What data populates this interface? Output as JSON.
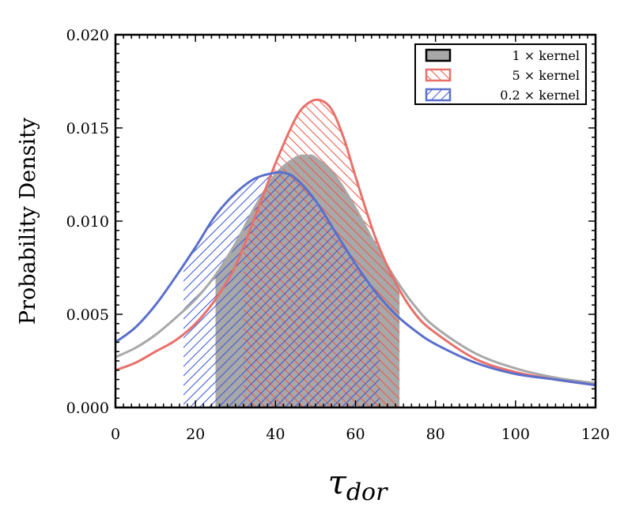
{
  "chart_data": {
    "type": "area",
    "xlabel": "τ",
    "xlabel_sub": "dor",
    "ylabel": "Probability Density",
    "xlim": [
      0,
      120
    ],
    "ylim": [
      0,
      0.02
    ],
    "xticks": [
      0,
      20,
      40,
      60,
      80,
      100,
      120
    ],
    "xtick_labels": [
      "0",
      "20",
      "40",
      "60",
      "80",
      "100",
      "120"
    ],
    "yticks": [
      0,
      0.005,
      0.01,
      0.015,
      0.02
    ],
    "ytick_labels": [
      "0.000",
      "0.005",
      "0.010",
      "0.015",
      "0.020"
    ],
    "grid": false,
    "legend_position": "top-right",
    "series": [
      {
        "name": "1 × kernel",
        "color": "#a8a8a8",
        "fill": "solid-gray",
        "shaded_interval": [
          25,
          71
        ],
        "x": [
          0,
          5,
          10,
          15,
          20,
          25,
          30,
          35,
          40,
          45,
          48,
          50,
          55,
          60,
          65,
          70,
          75,
          80,
          90,
          100,
          110,
          120
        ],
        "y": [
          0.0027,
          0.0032,
          0.0039,
          0.0048,
          0.0058,
          0.0071,
          0.0088,
          0.0108,
          0.0125,
          0.0134,
          0.0135,
          0.0134,
          0.0124,
          0.0107,
          0.0087,
          0.0069,
          0.0054,
          0.0043,
          0.0029,
          0.0021,
          0.0016,
          0.0013
        ]
      },
      {
        "name": "5 × kernel",
        "color": "#e8706a",
        "fill": "hatch-backslash",
        "shaded_interval": [
          32,
          71
        ],
        "x": [
          0,
          5,
          10,
          15,
          20,
          25,
          30,
          35,
          40,
          45,
          48,
          51,
          54,
          57,
          60,
          65,
          70,
          75,
          80,
          90,
          100,
          110,
          120
        ],
        "y": [
          0.002,
          0.0024,
          0.003,
          0.0036,
          0.0045,
          0.0058,
          0.0076,
          0.0103,
          0.0131,
          0.0155,
          0.0163,
          0.0165,
          0.016,
          0.0145,
          0.0124,
          0.0091,
          0.0067,
          0.005,
          0.004,
          0.0026,
          0.0019,
          0.0015,
          0.0012
        ]
      },
      {
        "name": "0.2 × kernel",
        "color": "#5a6fcc",
        "fill": "hatch-slash",
        "shaded_interval": [
          17,
          66
        ],
        "x": [
          0,
          5,
          10,
          15,
          20,
          25,
          30,
          35,
          40,
          42,
          45,
          50,
          55,
          60,
          65,
          70,
          75,
          80,
          90,
          100,
          110,
          120
        ],
        "y": [
          0.0035,
          0.0043,
          0.0055,
          0.007,
          0.0086,
          0.0103,
          0.0115,
          0.0123,
          0.0126,
          0.0126,
          0.0123,
          0.0111,
          0.0094,
          0.0077,
          0.0062,
          0.005,
          0.0041,
          0.0034,
          0.0024,
          0.0018,
          0.0015,
          0.0012
        ]
      }
    ]
  }
}
